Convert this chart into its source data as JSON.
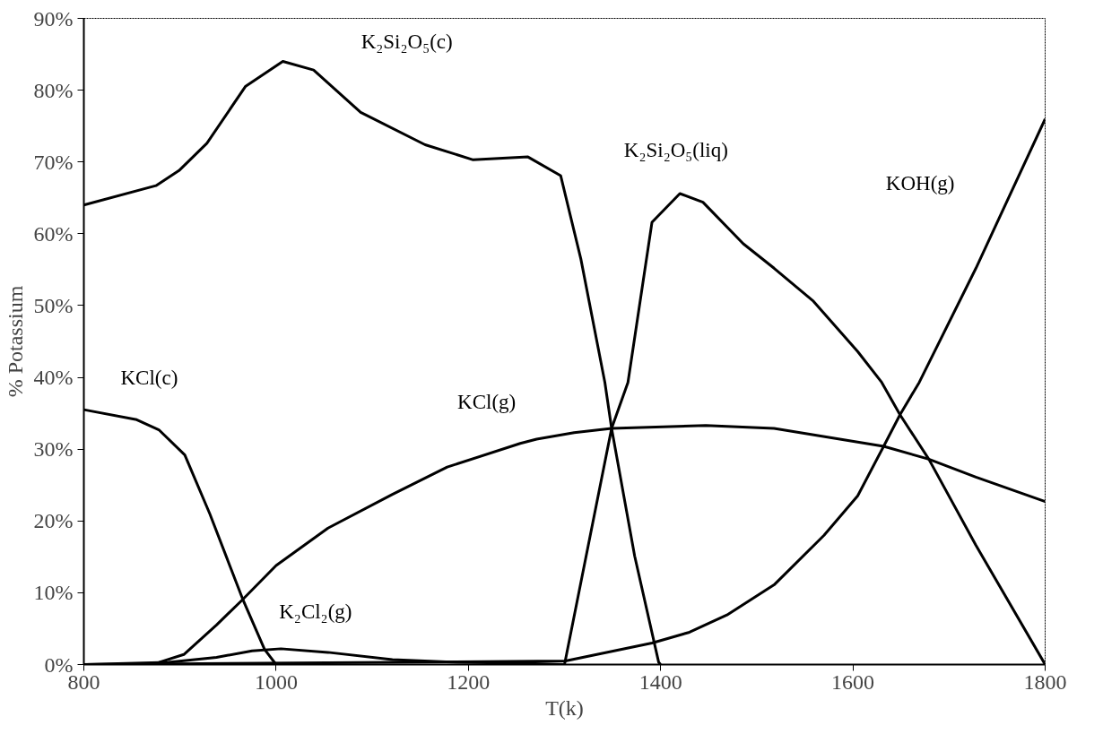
{
  "chart_data": {
    "type": "line",
    "xlabel": "T(k)",
    "ylabel": "% Potassium",
    "xlim": [
      800,
      1800
    ],
    "ylim": [
      0,
      90
    ],
    "xticks": [
      800,
      1000,
      1200,
      1400,
      1600,
      1800
    ],
    "yticks": [
      {
        "value": 0,
        "label": "0%"
      },
      {
        "value": 10,
        "label": "10%"
      },
      {
        "value": 20,
        "label": "20%"
      },
      {
        "value": 30,
        "label": "30%"
      },
      {
        "value": 40,
        "label": "40%"
      },
      {
        "value": 50,
        "label": "50%"
      },
      {
        "value": 60,
        "label": "60%"
      },
      {
        "value": 70,
        "label": "70%"
      },
      {
        "value": 80,
        "label": "80%"
      },
      {
        "value": 90,
        "label": "90%"
      }
    ],
    "grid": false,
    "legend": false,
    "marker": "none",
    "line_style": "solid",
    "series": [
      {
        "name": "K₂Si₂O₅(c)",
        "color": "#000000",
        "x": [
          800,
          875,
          899,
          928,
          968,
          1007,
          1039,
          1088,
          1155,
          1205,
          1262,
          1296,
          1317,
          1342,
          1349,
          1373,
          1398,
          1400
        ],
        "values": [
          64,
          66.7,
          68.8,
          72.6,
          80.5,
          84,
          82.8,
          76.9,
          72.4,
          70.3,
          70.7,
          68.1,
          56.5,
          39.3,
          32.9,
          15.1,
          0.3,
          0
        ]
      },
      {
        "name": "K₂Si₂O₅(liq)",
        "color": "#000000",
        "x": [
          1300,
          1349,
          1366,
          1391,
          1420,
          1444,
          1486,
          1518,
          1559,
          1605,
          1630,
          1649,
          1679,
          1728,
          1800
        ],
        "values": [
          0,
          32.9,
          39.3,
          61.6,
          65.6,
          64.4,
          58.6,
          55.2,
          50.6,
          43.6,
          39.3,
          34.8,
          28.6,
          16.6,
          0
        ]
      },
      {
        "name": "KOH(g)",
        "color": "#000000",
        "x": [
          800,
          1301,
          1391,
          1430,
          1469,
          1518,
          1570,
          1605,
          1632,
          1649,
          1669,
          1728,
          1800
        ],
        "values": [
          0,
          0.5,
          3,
          4.5,
          6.9,
          11.1,
          18,
          23.5,
          30.4,
          34.8,
          39.3,
          55.2,
          76
        ]
      },
      {
        "name": "KCl(c)",
        "color": "#000000",
        "x": [
          800,
          855,
          878,
          905,
          931,
          965,
          988,
          1000
        ],
        "values": [
          35.5,
          34.1,
          32.7,
          29.2,
          21,
          9.2,
          2.1,
          0
        ]
      },
      {
        "name": "KCl(g)",
        "color": "#000000",
        "x": [
          800,
          870,
          878,
          904,
          938,
          964,
          1000,
          1054,
          1121,
          1178,
          1254,
          1271,
          1310,
          1349,
          1447,
          1518,
          1632,
          1679,
          1728,
          1800
        ],
        "values": [
          0,
          0,
          0.3,
          1.4,
          5.5,
          8.9,
          13.8,
          19,
          23.7,
          27.5,
          30.8,
          31.4,
          32.3,
          32.9,
          33.3,
          32.9,
          30.4,
          28.6,
          26.1,
          22.7
        ]
      },
      {
        "name": "K₂Cl₂(g)",
        "color": "#000000",
        "x": [
          800,
          888,
          938,
          975,
          1005,
          1054,
          1121,
          1188,
          1254,
          1300
        ],
        "values": [
          0,
          0.3,
          1,
          1.9,
          2.2,
          1.7,
          0.7,
          0.3,
          0.2,
          0
        ]
      }
    ]
  }
}
